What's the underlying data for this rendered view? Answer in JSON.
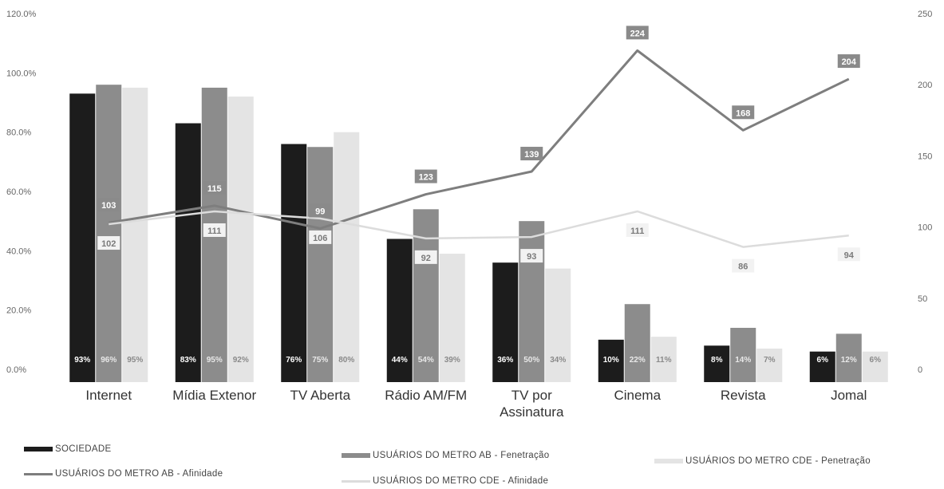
{
  "chart_data": {
    "type": "bar",
    "categories": [
      "Internet",
      "Mídia Extenor",
      "TV Aberta",
      "Rádio AM/FM",
      "TV por\nAssinatura",
      "Cinema",
      "Revista",
      "Jomal"
    ],
    "y_left": {
      "ylim": [
        0,
        120
      ],
      "ticks": [
        "0.0%",
        "20.0%",
        "40.0%",
        "60.0%",
        "80.0%",
        "100.0%",
        "120.0%"
      ]
    },
    "y_right": {
      "ylim": [
        0,
        250
      ],
      "ticks": [
        "0",
        "50",
        "100",
        "150",
        "200",
        "250"
      ]
    },
    "bar_series": [
      {
        "name": "SOCIEDADE",
        "color": "#1c1c1c",
        "label_color": "#ffffff",
        "values": [
          93,
          83,
          76,
          44,
          36,
          10,
          8,
          6
        ],
        "labels": [
          "93%",
          "83%",
          "76%",
          "44%",
          "36%",
          "10%",
          "8%",
          "6%"
        ]
      },
      {
        "name": "USUÁRIOS DO METRO AB - Fenetração",
        "color": "#8c8c8c",
        "label_color": "#e8e8e8",
        "values": [
          96,
          95,
          75,
          54,
          50,
          22,
          14,
          12
        ],
        "labels": [
          "96%",
          "95%",
          "75%",
          "54%",
          "50%",
          "22%",
          "14%",
          "12%"
        ]
      },
      {
        "name": "USUÁRIOS DO METRO CDE - Penetração",
        "color": "#e4e4e4",
        "label_color": "#8a8a8a",
        "values": [
          95,
          92,
          80,
          39,
          34,
          11,
          7,
          6
        ],
        "labels": [
          "95%",
          "92%",
          "80%",
          "39%",
          "34%",
          "11%",
          "7%",
          "6%"
        ]
      }
    ],
    "line_series": [
      {
        "name": "USUÁRIOS DO METRO AB - Afinidade",
        "color": "#7e7e7e",
        "values": [
          103,
          115,
          99,
          123,
          139,
          224,
          168,
          204
        ],
        "labels": [
          "103",
          "115",
          "99",
          "123",
          "139",
          "224",
          "168",
          "204"
        ]
      },
      {
        "name": "USUÁRIOS DO METRO CDE - Afinidade",
        "color": "#dcdcdc",
        "values": [
          102,
          111,
          106,
          92,
          93,
          111,
          86,
          94
        ],
        "labels": [
          "102",
          "111",
          "106",
          "92",
          "93",
          "111",
          "86",
          "94"
        ]
      }
    ],
    "legend": [
      {
        "label": "SOCIEDADE",
        "style": "bar",
        "color": "#1c1c1c"
      },
      {
        "label": "USUÁRIOS DO METRO AB - Fenetração",
        "style": "bar",
        "color": "#8c8c8c"
      },
      {
        "label": "USUÁRIOS DO METRO CDE - Penetração",
        "style": "bar",
        "color": "#e4e4e4"
      },
      {
        "label": "USUÁRIOS DO METRO AB - Afinidade",
        "style": "line",
        "color": "#7e7e7e"
      },
      {
        "label": "USUÁRIOS DO METRO CDE - Afinidade",
        "style": "line",
        "color": "#dcdcdc"
      }
    ],
    "legend_placement": "bottom",
    "grid": false
  }
}
